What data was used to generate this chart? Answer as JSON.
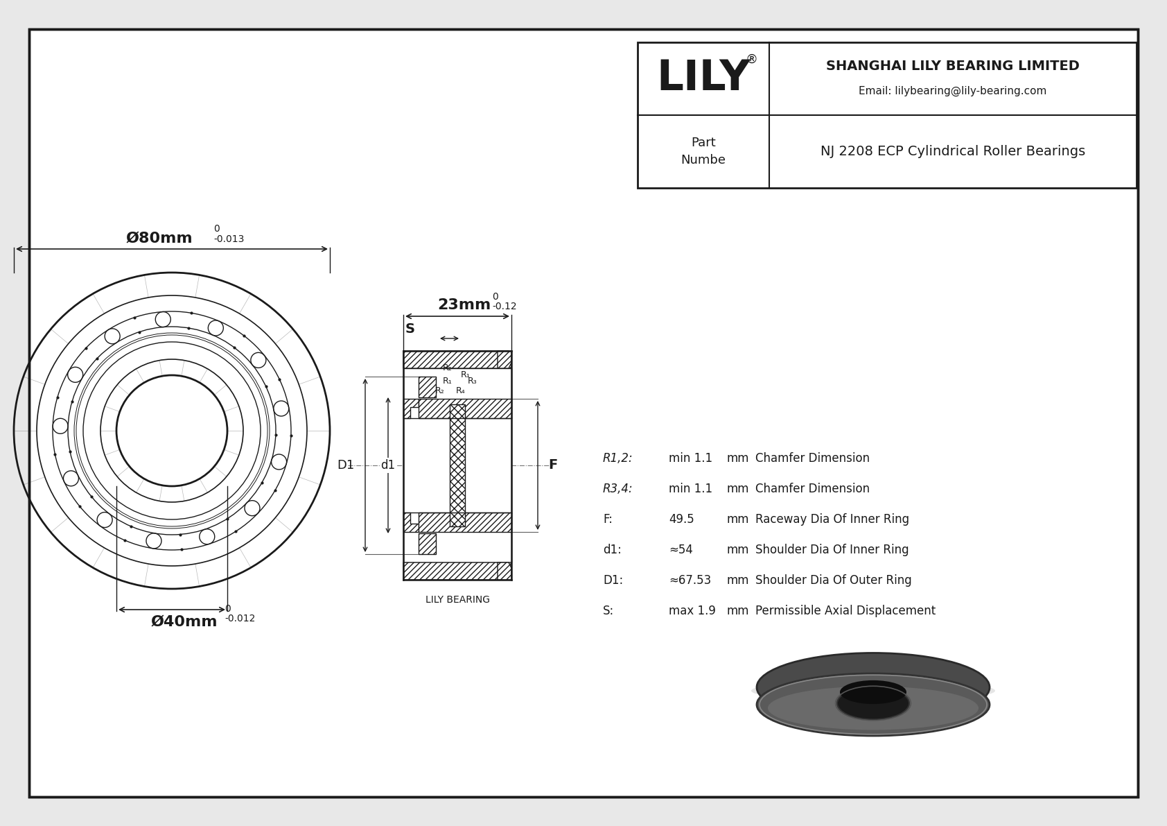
{
  "bg_color": "#e8e8e8",
  "line_color": "#1a1a1a",
  "title": "NJ 2208 ECP Cylindrical Roller Bearings",
  "company": "SHANGHAI LILY BEARING LIMITED",
  "email": "Email: lilybearing@lily-bearing.com",
  "brand": "LILY",
  "part_label": "Part\nNumbe",
  "dim_outer": "Ø80mm",
  "dim_outer_tol_top": "0",
  "dim_outer_tol_bot": "-0.013",
  "dim_inner": "Ø40mm",
  "dim_inner_tol_top": "0",
  "dim_inner_tol_bot": "-0.012",
  "dim_width": "23mm",
  "dim_width_tol_top": "0",
  "dim_width_tol_bot": "-0.12",
  "params": [
    {
      "label": "R1,2:",
      "value": "min 1.1",
      "unit": "mm",
      "desc": "Chamfer Dimension"
    },
    {
      "label": "R3,4:",
      "value": "min 1.1",
      "unit": "mm",
      "desc": "Chamfer Dimension"
    },
    {
      "label": "F:",
      "value": "49.5",
      "unit": "mm",
      "desc": "Raceway Dia Of Inner Ring"
    },
    {
      "label": "d1:",
      "value": "≈54",
      "unit": "mm",
      "desc": "Shoulder Dia Of Inner Ring"
    },
    {
      "label": "D1:",
      "value": "≈67.53",
      "unit": "mm",
      "desc": "Shoulder Dia Of Outer Ring"
    },
    {
      "label": "S:",
      "value": "max 1.9",
      "unit": "mm",
      "desc": "Permissible Axial Displacement"
    }
  ]
}
